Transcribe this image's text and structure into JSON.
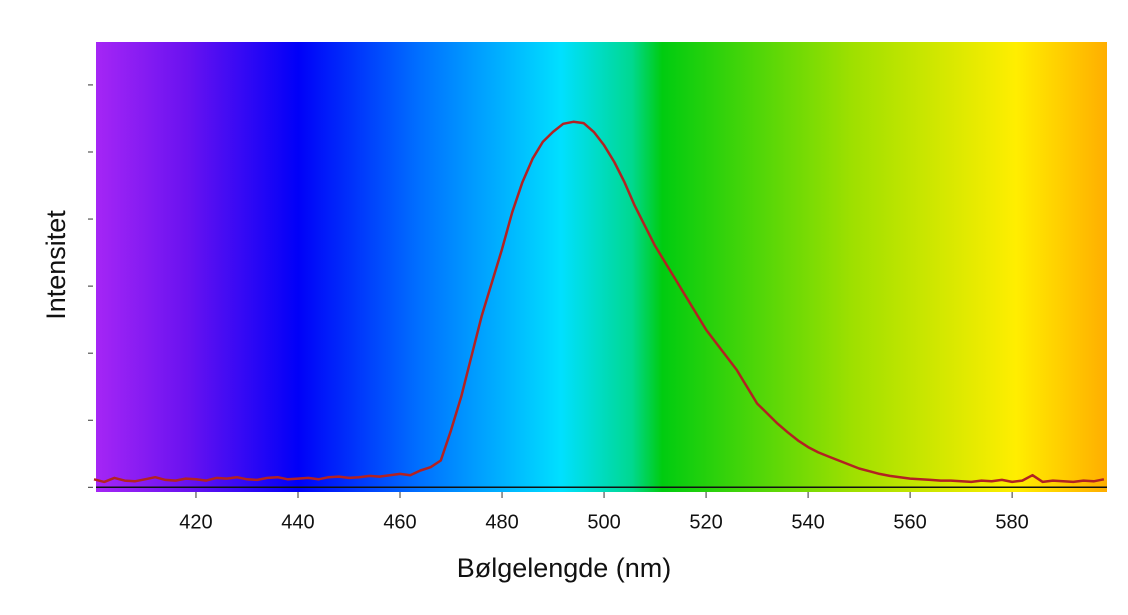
{
  "chart_data": {
    "type": "line",
    "x_label": "Bølgelengde (nm)",
    "y_label": "Intensitet",
    "x": [
      400,
      402,
      404,
      406,
      408,
      410,
      412,
      414,
      416,
      418,
      420,
      422,
      424,
      426,
      428,
      430,
      432,
      434,
      436,
      438,
      440,
      442,
      444,
      446,
      448,
      450,
      452,
      454,
      456,
      458,
      460,
      462,
      464,
      466,
      468,
      470,
      472,
      474,
      476,
      478,
      480,
      482,
      484,
      486,
      488,
      490,
      492,
      494,
      496,
      498,
      500,
      502,
      504,
      506,
      508,
      510,
      512,
      514,
      516,
      518,
      520,
      522,
      524,
      526,
      528,
      530,
      532,
      534,
      536,
      538,
      540,
      542,
      544,
      546,
      548,
      550,
      552,
      554,
      556,
      558,
      560,
      562,
      564,
      566,
      568,
      570,
      572,
      574,
      576,
      578,
      580,
      582,
      584,
      586,
      588,
      590,
      592,
      594,
      596,
      598
    ],
    "series": [
      {
        "color": "#b22222",
        "values": [
          0.12,
          0.08,
          0.14,
          0.1,
          0.09,
          0.12,
          0.15,
          0.11,
          0.1,
          0.13,
          0.12,
          0.1,
          0.14,
          0.13,
          0.15,
          0.12,
          0.11,
          0.14,
          0.15,
          0.12,
          0.13,
          0.14,
          0.12,
          0.15,
          0.16,
          0.14,
          0.15,
          0.17,
          0.16,
          0.18,
          0.2,
          0.18,
          0.25,
          0.3,
          0.4,
          0.85,
          1.35,
          1.95,
          2.55,
          3.05,
          3.55,
          4.1,
          4.55,
          4.9,
          5.15,
          5.3,
          5.42,
          5.45,
          5.43,
          5.3,
          5.1,
          4.85,
          4.55,
          4.2,
          3.9,
          3.6,
          3.35,
          3.1,
          2.85,
          2.6,
          2.35,
          2.15,
          1.95,
          1.75,
          1.5,
          1.25,
          1.1,
          0.95,
          0.82,
          0.7,
          0.6,
          0.52,
          0.46,
          0.4,
          0.34,
          0.28,
          0.24,
          0.2,
          0.17,
          0.15,
          0.13,
          0.12,
          0.11,
          0.1,
          0.1,
          0.09,
          0.08,
          0.1,
          0.09,
          0.11,
          0.08,
          0.1,
          0.18,
          0.08,
          0.1,
          0.09,
          0.08,
          0.1,
          0.09,
          0.12
        ]
      }
    ],
    "xlim": [
      400.4,
      598.6
    ],
    "xticks": [
      420,
      440,
      460,
      480,
      500,
      520,
      540,
      560,
      580
    ],
    "ylim": [
      -0.07,
      6.64
    ],
    "yticks": [
      0,
      1,
      2,
      3,
      4,
      5,
      6
    ]
  }
}
